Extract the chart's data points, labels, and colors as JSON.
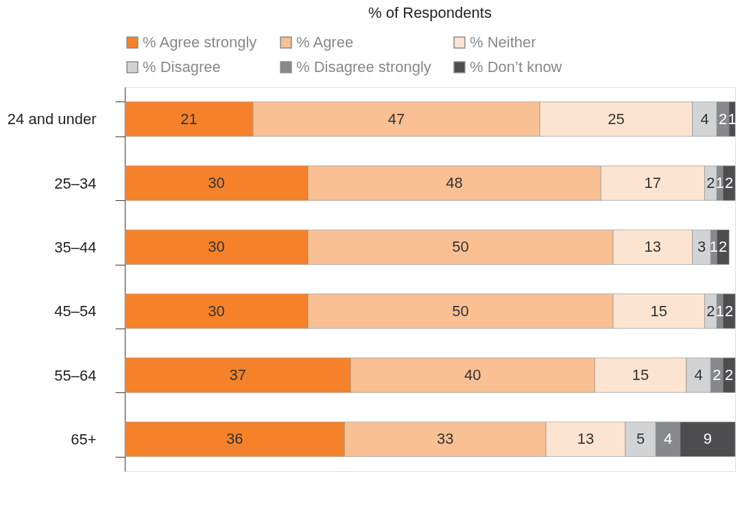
{
  "chart_data": {
    "type": "bar",
    "orientation": "horizontal",
    "stacked": true,
    "title": "% of Respondents",
    "categories": [
      "24 and under",
      "25–34",
      "35–44",
      "45–54",
      "55–64",
      "65+"
    ],
    "series": [
      {
        "name": "% Agree strongly",
        "color": "#f5822a",
        "values": [
          21,
          30,
          30,
          30,
          37,
          36
        ]
      },
      {
        "name": "% Agree",
        "color": "#f9c094",
        "values": [
          47,
          48,
          50,
          50,
          40,
          33
        ]
      },
      {
        "name": "% Neither",
        "color": "#fde4d0",
        "values": [
          25,
          17,
          13,
          15,
          15,
          13
        ]
      },
      {
        "name": "% Disagree",
        "color": "#d2d3d5",
        "values": [
          4,
          2,
          3,
          2,
          4,
          5
        ]
      },
      {
        "name": "% Disagree strongly",
        "color": "#87888b",
        "values": [
          2,
          1,
          1,
          1,
          2,
          4
        ]
      },
      {
        "name": "% Don’t know",
        "color": "#4d4d4f",
        "values": [
          1,
          2,
          2,
          2,
          2,
          9
        ]
      }
    ],
    "xlim": [
      0,
      100
    ],
    "data_labels": true,
    "legend": "top",
    "grid": false,
    "tick_labels": "y"
  }
}
